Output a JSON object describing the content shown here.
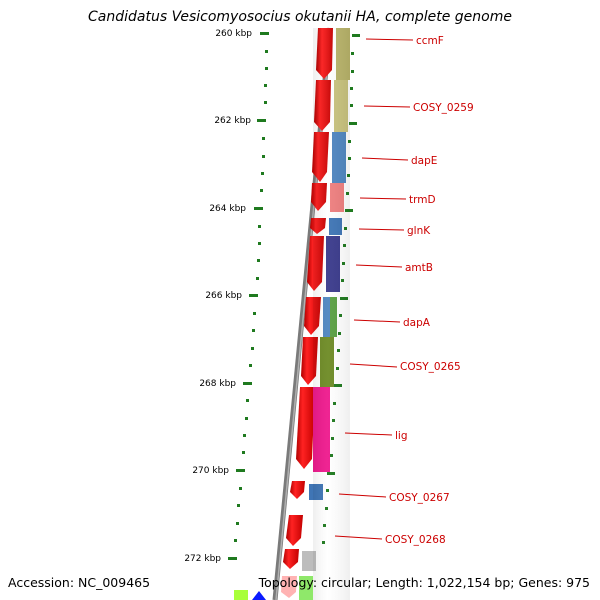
{
  "title": "Candidatus Vesicomyosocius okutanii HA, complete genome",
  "accession": "Accession: NC_009465",
  "topology": "Topology: circular; Length: 1,022,154 bp; Genes: 975",
  "ruler": [
    {
      "label": "260 kbp"
    },
    {
      "label": "262 kbp"
    },
    {
      "label": "264 kbp"
    },
    {
      "label": "266 kbp"
    },
    {
      "label": "268 kbp"
    },
    {
      "label": "270 kbp"
    },
    {
      "label": "272 kbp"
    }
  ],
  "genes": [
    {
      "name": "ccmF",
      "color": "#b8b36a"
    },
    {
      "name": "COSY_0259",
      "color": "#c8c27e"
    },
    {
      "name": "dapE",
      "color": "#4f86c0"
    },
    {
      "name": "trmD",
      "color": "#ee7f7f"
    },
    {
      "name": "glnK",
      "color": "#3f75b5"
    },
    {
      "name": "amtB",
      "color": "#3b3b8c"
    },
    {
      "name": "dapA",
      "color": "#5aa043"
    },
    {
      "name": "COSY_0265",
      "color": "#6e8b26"
    },
    {
      "name": "lig",
      "color": "#ee1b8e"
    },
    {
      "name": "COSY_0267",
      "color": "#3f75b5"
    },
    {
      "name": "COSY_0268",
      "color": "#ffffff"
    }
  ],
  "colors": {
    "forward_strand": "#ee0000",
    "backbone": "#808080",
    "tick": "#1f7a1f",
    "label": "#cc0000"
  }
}
